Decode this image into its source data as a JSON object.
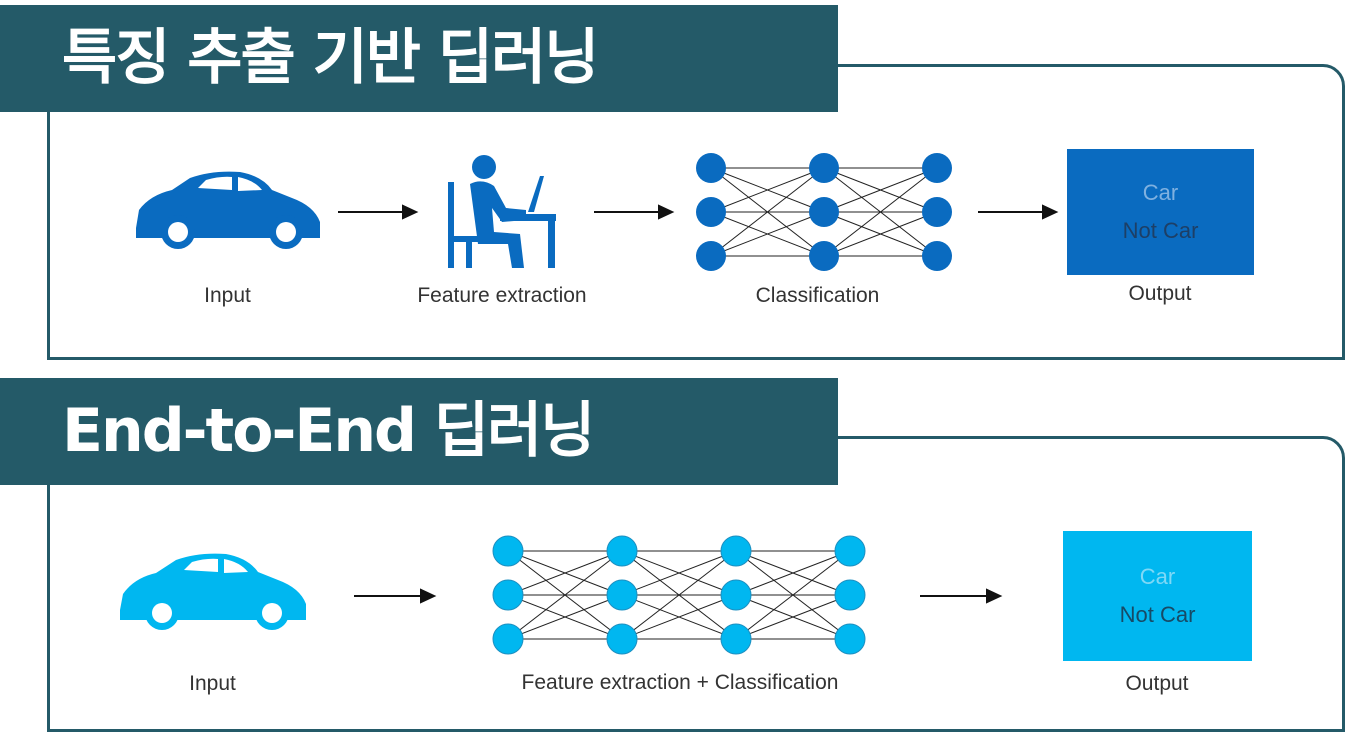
{
  "colors": {
    "banner": "#245a68",
    "dark_blue": "#0a6bc0",
    "light_blue": "#00b7f0"
  },
  "top": {
    "title": "특징 추출 기반 딥러닝",
    "input_label": "Input",
    "feature_label": "Feature extraction",
    "class_label": "Classification",
    "output_label": "Output",
    "out_car": "Car",
    "out_notcar": "Not Car"
  },
  "bottom": {
    "title": "End-to-End 딥러닝",
    "input_label": "Input",
    "combined_label": "Feature extraction + Classification",
    "output_label": "Output",
    "out_car": "Car",
    "out_notcar": "Not Car"
  },
  "icons": {
    "car": "car-icon",
    "worker": "person-at-desk-icon",
    "network": "neural-network-icon",
    "arrow": "right-arrow-icon"
  }
}
